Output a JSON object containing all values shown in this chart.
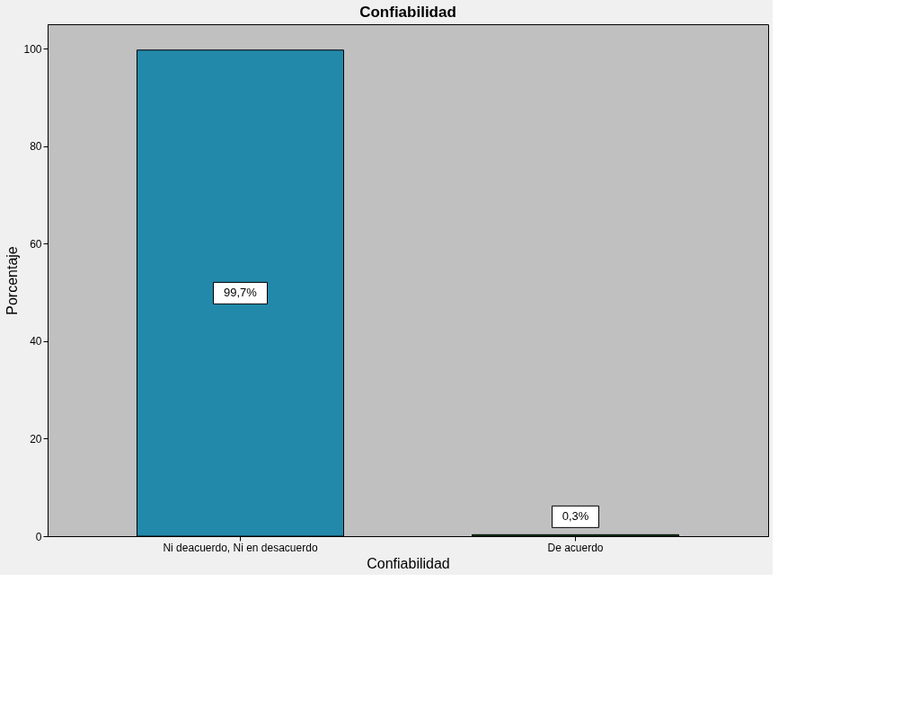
{
  "chart_data": {
    "type": "bar",
    "title": "Confiabilidad",
    "xlabel": "Confiabilidad",
    "ylabel": "Porcentaje",
    "categories": [
      "Ni deacuerdo, Ni en desacuerdo",
      "De acuerdo"
    ],
    "values": [
      99.7,
      0.3
    ],
    "colors": [
      "#2389ab",
      "#1f6b2f"
    ],
    "value_labels": [
      "99,7%",
      "0,3%"
    ],
    "ylim": [
      0,
      105
    ],
    "yticks": [
      0,
      20,
      40,
      60,
      80,
      100
    ],
    "grid": false
  }
}
